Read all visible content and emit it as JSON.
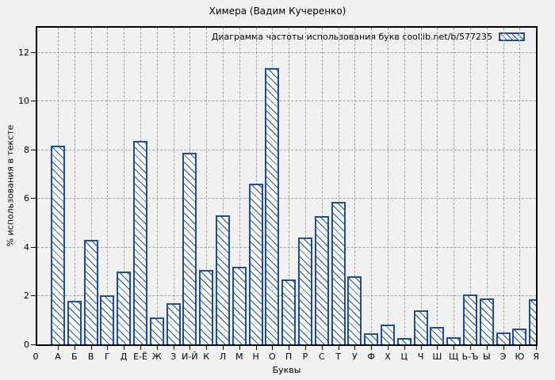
{
  "chart_data": {
    "type": "bar",
    "title": "Химера (Вадим Кучеренко)",
    "legend": "Диаграмма частоты использования букв coollib.net/b/577235",
    "legend_position": "top-right-inside",
    "xlabel": "Буквы",
    "ylabel": "% использования в тексте",
    "origin_tick_label": "0",
    "categories": [
      "А",
      "Б",
      "В",
      "Г",
      "Д",
      "Е-Ё",
      "Ж",
      "З",
      "И-Й",
      "К",
      "Л",
      "М",
      "Н",
      "О",
      "П",
      "Р",
      "С",
      "Т",
      "У",
      "Ф",
      "Х",
      "Ц",
      "Ч",
      "Ш",
      "Щ",
      "Ь-Ъ",
      "Ы",
      "Э",
      "Ю",
      "Я"
    ],
    "values": [
      8.15,
      1.8,
      4.3,
      2.0,
      3.0,
      8.35,
      1.1,
      1.7,
      7.85,
      3.05,
      5.3,
      3.2,
      6.6,
      11.35,
      2.65,
      4.4,
      5.25,
      5.85,
      2.8,
      0.45,
      0.8,
      0.25,
      1.4,
      0.7,
      0.3,
      2.05,
      1.9,
      0.5,
      0.65,
      1.85
    ],
    "yticks": [
      0,
      2,
      4,
      6,
      8,
      10,
      12
    ],
    "ylim": [
      0,
      13
    ],
    "grid": true,
    "hatch": "backslash-diagonal",
    "colors": {
      "bar_stroke": "#1b4da2",
      "bar_fill": "#ffffff",
      "grid": "#a3a3a3",
      "background": "#f1f1f1",
      "border": "#000000",
      "text": "#000000"
    }
  }
}
